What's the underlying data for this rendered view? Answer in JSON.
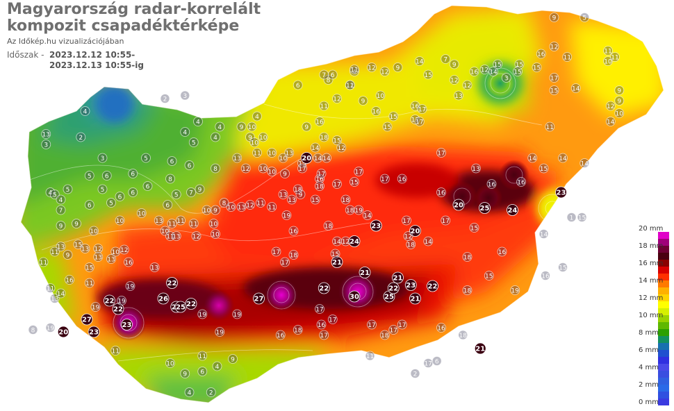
{
  "title_line1": "Magyarország radar-korrelált",
  "title_line2": "kompozit csapadéktérképe",
  "subtitle": "Az Időkép.hu vizualizációjában",
  "period_label": "Időszak -",
  "period_from": "2023.12.12 10:55-",
  "period_to": "2023.12.13 10:55-ig",
  "legend": {
    "labels": [
      "20 mm",
      "18 mm",
      "16 mm",
      "14 mm",
      "12 mm",
      "10 mm",
      "8 mm",
      "6 mm",
      "4 mm",
      "2 mm",
      "0 mm"
    ],
    "colors": [
      "#e000c8",
      "#a0007a",
      "#6e0034",
      "#4a0010",
      "#8a0000",
      "#d80000",
      "#ff3000",
      "#ff7a00",
      "#ffb000",
      "#ffd400",
      "#ffff00",
      "#d6f000",
      "#9ad200",
      "#5fb800",
      "#2ca000",
      "#139060",
      "#1870b0",
      "#2050d0",
      "#3030e0",
      "#4a4ae8",
      "#3a4ee0",
      "#3060e0",
      "#2a6ae8",
      "#3050e0",
      "#3a3ae0"
    ]
  },
  "stations": [
    {
      "lat": 48.5,
      "lon": 16.9,
      "v": "4"
    },
    {
      "lat": 48.62,
      "lon": 17.82,
      "v": "2"
    },
    {
      "lat": 48.65,
      "lon": 18.05,
      "v": "3"
    },
    {
      "lat": 48.4,
      "lon": 18.2,
      "v": "4"
    },
    {
      "lat": 48.35,
      "lon": 18.45,
      "v": "4"
    },
    {
      "lat": 48.45,
      "lon": 18.88,
      "v": "4"
    },
    {
      "lat": 48.75,
      "lon": 19.35,
      "v": "6"
    },
    {
      "lat": 48.88,
      "lon": 20.0,
      "v": "4"
    },
    {
      "lat": 48.98,
      "lon": 20.75,
      "v": "14"
    },
    {
      "lat": 49.4,
      "lon": 22.3,
      "v": "9"
    },
    {
      "lat": 49.4,
      "lon": 22.65,
      "v": "5"
    },
    {
      "lat": 48.28,
      "lon": 16.45,
      "v": "13"
    },
    {
      "lat": 48.25,
      "lon": 16.85,
      "v": "2"
    },
    {
      "lat": 48.18,
      "lon": 16.45,
      "v": "3"
    },
    {
      "lat": 48.3,
      "lon": 18.05,
      "v": "4"
    },
    {
      "lat": 48.2,
      "lon": 18.15,
      "v": "5"
    },
    {
      "lat": 48.25,
      "lon": 18.4,
      "v": "4"
    },
    {
      "lat": 48.05,
      "lon": 17.1,
      "v": "3"
    },
    {
      "lat": 48.05,
      "lon": 17.6,
      "v": "5"
    },
    {
      "lat": 48.02,
      "lon": 17.9,
      "v": "6"
    },
    {
      "lat": 47.98,
      "lon": 18.1,
      "v": "6"
    },
    {
      "lat": 47.95,
      "lon": 18.4,
      "v": "8"
    },
    {
      "lat": 48.05,
      "lon": 18.65,
      "v": "13"
    },
    {
      "lat": 48.1,
      "lon": 18.88,
      "v": "11"
    },
    {
      "lat": 47.95,
      "lon": 18.75,
      "v": "12"
    },
    {
      "lat": 47.92,
      "lon": 19.05,
      "v": "10"
    },
    {
      "lat": 47.9,
      "lon": 19.2,
      "v": "9"
    },
    {
      "lat": 47.95,
      "lon": 18.95,
      "v": "10"
    },
    {
      "lat": 48.05,
      "lon": 19.18,
      "v": "10"
    },
    {
      "lat": 48.0,
      "lon": 19.4,
      "v": "15"
    },
    {
      "lat": 47.88,
      "lon": 16.95,
      "v": "5"
    },
    {
      "lat": 47.88,
      "lon": 17.15,
      "v": "6"
    },
    {
      "lat": 47.9,
      "lon": 17.45,
      "v": "6"
    },
    {
      "lat": 47.85,
      "lon": 17.88,
      "v": "8"
    },
    {
      "lat": 47.78,
      "lon": 17.62,
      "v": "6"
    },
    {
      "lat": 47.75,
      "lon": 17.1,
      "v": "5"
    },
    {
      "lat": 47.72,
      "lon": 17.45,
      "v": "6"
    },
    {
      "lat": 47.72,
      "lon": 18.12,
      "v": "7"
    },
    {
      "lat": 47.75,
      "lon": 18.22,
      "v": "9"
    },
    {
      "lat": 47.7,
      "lon": 17.95,
      "v": "5"
    },
    {
      "lat": 47.68,
      "lon": 17.3,
      "v": "6"
    },
    {
      "lat": 47.62,
      "lon": 17.2,
      "v": "5"
    },
    {
      "lat": 47.6,
      "lon": 17.85,
      "v": "6"
    },
    {
      "lat": 47.75,
      "lon": 16.7,
      "v": "5"
    },
    {
      "lat": 47.72,
      "lon": 16.5,
      "v": "4"
    },
    {
      "lat": 47.7,
      "lon": 16.55,
      "v": "5"
    },
    {
      "lat": 47.65,
      "lon": 16.62,
      "v": "4"
    },
    {
      "lat": 47.55,
      "lon": 16.62,
      "v": "7"
    },
    {
      "lat": 47.6,
      "lon": 16.95,
      "v": "6"
    },
    {
      "lat": 47.52,
      "lon": 17.55,
      "v": "10"
    },
    {
      "lat": 47.55,
      "lon": 18.3,
      "v": "10"
    },
    {
      "lat": 47.55,
      "lon": 18.4,
      "v": "9"
    },
    {
      "lat": 47.58,
      "lon": 18.58,
      "v": "10"
    },
    {
      "lat": 47.62,
      "lon": 18.5,
      "v": "8"
    },
    {
      "lat": 47.58,
      "lon": 18.7,
      "v": "13"
    },
    {
      "lat": 47.6,
      "lon": 18.8,
      "v": "12"
    },
    {
      "lat": 47.62,
      "lon": 18.92,
      "v": "11"
    },
    {
      "lat": 47.58,
      "lon": 19.05,
      "v": "11"
    },
    {
      "lat": 47.65,
      "lon": 19.28,
      "v": "13"
    },
    {
      "lat": 47.7,
      "lon": 19.18,
      "v": "13"
    },
    {
      "lat": 47.7,
      "lon": 19.38,
      "v": "9"
    },
    {
      "lat": 47.4,
      "lon": 16.62,
      "v": "9"
    },
    {
      "lat": 47.42,
      "lon": 16.8,
      "v": "9"
    },
    {
      "lat": 47.35,
      "lon": 17.0,
      "v": "10"
    },
    {
      "lat": 47.45,
      "lon": 17.3,
      "v": "10"
    },
    {
      "lat": 47.45,
      "lon": 17.75,
      "v": "13"
    },
    {
      "lat": 47.42,
      "lon": 17.9,
      "v": "11"
    },
    {
      "lat": 47.35,
      "lon": 17.82,
      "v": "10"
    },
    {
      "lat": 47.45,
      "lon": 18.0,
      "v": "11"
    },
    {
      "lat": 47.3,
      "lon": 17.88,
      "v": "11"
    },
    {
      "lat": 47.3,
      "lon": 17.95,
      "v": "13"
    },
    {
      "lat": 47.42,
      "lon": 18.15,
      "v": "11"
    },
    {
      "lat": 47.42,
      "lon": 18.38,
      "v": "10"
    },
    {
      "lat": 47.3,
      "lon": 18.18,
      "v": "12"
    },
    {
      "lat": 47.32,
      "lon": 18.4,
      "v": "10"
    },
    {
      "lat": 47.2,
      "lon": 16.62,
      "v": "13"
    },
    {
      "lat": 47.22,
      "lon": 16.82,
      "v": "15"
    },
    {
      "lat": 47.18,
      "lon": 16.9,
      "v": "13"
    },
    {
      "lat": 47.15,
      "lon": 16.55,
      "v": "11"
    },
    {
      "lat": 47.12,
      "lon": 16.7,
      "v": "9"
    },
    {
      "lat": 47.18,
      "lon": 17.05,
      "v": "12"
    },
    {
      "lat": 47.1,
      "lon": 17.05,
      "v": "13"
    },
    {
      "lat": 47.15,
      "lon": 17.25,
      "v": "10"
    },
    {
      "lat": 47.17,
      "lon": 17.35,
      "v": "12"
    },
    {
      "lat": 47.05,
      "lon": 17.4,
      "v": "16"
    },
    {
      "lat": 47.0,
      "lon": 17.7,
      "v": "13"
    },
    {
      "lat": 47.08,
      "lon": 17.2,
      "v": "13"
    },
    {
      "lat": 47.0,
      "lon": 16.95,
      "v": "15"
    },
    {
      "lat": 47.05,
      "lon": 16.42,
      "v": "11"
    },
    {
      "lat": 46.88,
      "lon": 16.72,
      "v": "16"
    },
    {
      "lat": 46.85,
      "lon": 16.95,
      "v": "11"
    },
    {
      "lat": 46.8,
      "lon": 16.5,
      "v": "11"
    },
    {
      "lat": 46.7,
      "lon": 16.55,
      "v": "13"
    },
    {
      "lat": 46.75,
      "lon": 16.62,
      "v": "14"
    },
    {
      "lat": 46.4,
      "lon": 16.3,
      "v": "8"
    },
    {
      "lat": 46.42,
      "lon": 16.5,
      "v": "19"
    },
    {
      "lat": 46.38,
      "lon": 16.65,
      "v": "20"
    },
    {
      "lat": 46.5,
      "lon": 16.92,
      "v": "27"
    },
    {
      "lat": 46.38,
      "lon": 17.0,
      "v": "23"
    },
    {
      "lat": 46.45,
      "lon": 17.38,
      "v": "23"
    },
    {
      "lat": 46.6,
      "lon": 17.28,
      "v": "22"
    },
    {
      "lat": 46.62,
      "lon": 17.02,
      "v": "19"
    },
    {
      "lat": 46.68,
      "lon": 17.18,
      "v": "22"
    },
    {
      "lat": 46.68,
      "lon": 17.32,
      "v": "19"
    },
    {
      "lat": 46.82,
      "lon": 17.42,
      "v": "19"
    },
    {
      "lat": 46.85,
      "lon": 17.9,
      "v": "22"
    },
    {
      "lat": 46.7,
      "lon": 17.8,
      "v": "26"
    },
    {
      "lat": 46.62,
      "lon": 17.95,
      "v": "22"
    },
    {
      "lat": 46.65,
      "lon": 18.12,
      "v": "22"
    },
    {
      "lat": 46.62,
      "lon": 18.0,
      "v": "25"
    },
    {
      "lat": 46.55,
      "lon": 18.25,
      "v": "19"
    },
    {
      "lat": 46.7,
      "lon": 18.9,
      "v": "27"
    },
    {
      "lat": 46.8,
      "lon": 19.65,
      "v": "22"
    },
    {
      "lat": 46.72,
      "lon": 20.0,
      "v": "30"
    },
    {
      "lat": 46.72,
      "lon": 20.4,
      "v": "25"
    },
    {
      "lat": 46.8,
      "lon": 20.45,
      "v": "22"
    },
    {
      "lat": 46.83,
      "lon": 20.65,
      "v": "23"
    },
    {
      "lat": 46.82,
      "lon": 20.9,
      "v": "22"
    },
    {
      "lat": 46.7,
      "lon": 20.7,
      "v": "21"
    },
    {
      "lat": 46.6,
      "lon": 19.6,
      "v": "17"
    },
    {
      "lat": 46.95,
      "lon": 20.12,
      "v": "21"
    },
    {
      "lat": 46.9,
      "lon": 20.5,
      "v": "21"
    },
    {
      "lat": 47.05,
      "lon": 19.8,
      "v": "21"
    },
    {
      "lat": 47.13,
      "lon": 19.78,
      "v": "15"
    },
    {
      "lat": 47.05,
      "lon": 19.2,
      "v": "17"
    },
    {
      "lat": 46.5,
      "lon": 19.75,
      "v": "17"
    },
    {
      "lat": 46.45,
      "lon": 19.62,
      "v": "16"
    },
    {
      "lat": 46.4,
      "lon": 19.35,
      "v": "18"
    },
    {
      "lat": 46.35,
      "lon": 19.65,
      "v": "17"
    },
    {
      "lat": 46.35,
      "lon": 19.15,
      "v": "16"
    },
    {
      "lat": 46.38,
      "lon": 18.45,
      "v": "19"
    },
    {
      "lat": 46.55,
      "lon": 18.65,
      "v": "19"
    },
    {
      "lat": 46.45,
      "lon": 20.2,
      "v": "17"
    },
    {
      "lat": 46.45,
      "lon": 20.55,
      "v": "17"
    },
    {
      "lat": 46.42,
      "lon": 21.0,
      "v": "16"
    },
    {
      "lat": 46.35,
      "lon": 21.25,
      "v": "18"
    },
    {
      "lat": 46.4,
      "lon": 20.45,
      "v": "17"
    },
    {
      "lat": 46.35,
      "lon": 20.35,
      "v": "18"
    },
    {
      "lat": 46.22,
      "lon": 21.45,
      "v": "21"
    },
    {
      "lat": 46.15,
      "lon": 18.25,
      "v": "11"
    },
    {
      "lat": 46.2,
      "lon": 17.25,
      "v": "11"
    },
    {
      "lat": 46.08,
      "lon": 17.88,
      "v": "10"
    },
    {
      "lat": 46.0,
      "lon": 18.25,
      "v": "6"
    },
    {
      "lat": 46.05,
      "lon": 18.42,
      "v": "4"
    },
    {
      "lat": 46.12,
      "lon": 18.6,
      "v": "9"
    },
    {
      "lat": 45.98,
      "lon": 18.05,
      "v": "9"
    },
    {
      "lat": 45.8,
      "lon": 18.1,
      "v": "4"
    },
    {
      "lat": 45.8,
      "lon": 18.35,
      "v": "2"
    },
    {
      "lat": 45.98,
      "lon": 20.7,
      "v": "2"
    },
    {
      "lat": 46.08,
      "lon": 20.85,
      "v": "17"
    },
    {
      "lat": 46.1,
      "lon": 20.95,
      "v": "6"
    },
    {
      "lat": 46.15,
      "lon": 20.18,
      "v": "11"
    },
    {
      "lat": 47.1,
      "lon": 21.3,
      "v": "18"
    },
    {
      "lat": 47.15,
      "lon": 21.7,
      "v": "16"
    },
    {
      "lat": 46.92,
      "lon": 21.55,
      "v": "15"
    },
    {
      "lat": 46.78,
      "lon": 21.3,
      "v": "18"
    },
    {
      "lat": 46.78,
      "lon": 21.85,
      "v": "19"
    },
    {
      "lat": 46.92,
      "lon": 22.2,
      "v": "16"
    },
    {
      "lat": 47.0,
      "lon": 22.4,
      "v": "15"
    },
    {
      "lat": 47.45,
      "lon": 21.05,
      "v": "17"
    },
    {
      "lat": 47.38,
      "lon": 21.38,
      "v": "15"
    },
    {
      "lat": 47.6,
      "lon": 21.2,
      "v": "20"
    },
    {
      "lat": 47.57,
      "lon": 21.5,
      "v": "25"
    },
    {
      "lat": 47.55,
      "lon": 21.82,
      "v": "24"
    },
    {
      "lat": 47.72,
      "lon": 22.38,
      "v": "23"
    },
    {
      "lat": 47.48,
      "lon": 22.5,
      "v": "1"
    },
    {
      "lat": 47.48,
      "lon": 22.62,
      "v": "15"
    },
    {
      "lat": 47.32,
      "lon": 22.18,
      "v": "14"
    },
    {
      "lat": 47.8,
      "lon": 21.58,
      "v": "16"
    },
    {
      "lat": 47.82,
      "lon": 21.92,
      "v": "16"
    },
    {
      "lat": 47.95,
      "lon": 21.4,
      "v": "13"
    },
    {
      "lat": 47.95,
      "lon": 22.18,
      "v": "15"
    },
    {
      "lat": 48.05,
      "lon": 22.05,
      "v": "14"
    },
    {
      "lat": 48.05,
      "lon": 22.4,
      "v": "14"
    },
    {
      "lat": 48.0,
      "lon": 22.65,
      "v": "14"
    },
    {
      "lat": 48.35,
      "lon": 22.25,
      "v": "11"
    },
    {
      "lat": 48.4,
      "lon": 22.95,
      "v": "14"
    },
    {
      "lat": 48.48,
      "lon": 23.05,
      "v": "10"
    },
    {
      "lat": 48.6,
      "lon": 23.05,
      "v": "9"
    },
    {
      "lat": 48.7,
      "lon": 23.05,
      "v": "9"
    },
    {
      "lat": 48.55,
      "lon": 22.95,
      "v": "12"
    },
    {
      "lat": 48.7,
      "lon": 22.3,
      "v": "15"
    },
    {
      "lat": 48.72,
      "lon": 22.55,
      "v": "14"
    },
    {
      "lat": 48.82,
      "lon": 22.3,
      "v": "17"
    },
    {
      "lat": 48.92,
      "lon": 22.1,
      "v": "15"
    },
    {
      "lat": 48.95,
      "lon": 21.9,
      "v": "15"
    },
    {
      "lat": 48.95,
      "lon": 21.65,
      "v": "15"
    },
    {
      "lat": 49.05,
      "lon": 22.15,
      "v": "16"
    },
    {
      "lat": 49.12,
      "lon": 22.3,
      "v": "12"
    },
    {
      "lat": 49.02,
      "lon": 22.45,
      "v": "11"
    },
    {
      "lat": 49.08,
      "lon": 22.92,
      "v": "11"
    },
    {
      "lat": 48.98,
      "lon": 22.92,
      "v": "10"
    },
    {
      "lat": 49.02,
      "lon": 23.0,
      "v": "11"
    },
    {
      "lat": 48.82,
      "lon": 21.75,
      "v": "3"
    },
    {
      "lat": 48.88,
      "lon": 21.6,
      "v": "14"
    },
    {
      "lat": 48.88,
      "lon": 21.88,
      "v": "15"
    },
    {
      "lat": 49.0,
      "lon": 21.05,
      "v": "7"
    },
    {
      "lat": 48.95,
      "lon": 21.15,
      "v": "9"
    },
    {
      "lat": 48.9,
      "lon": 21.5,
      "v": "12"
    },
    {
      "lat": 48.88,
      "lon": 21.38,
      "v": "16"
    },
    {
      "lat": 48.75,
      "lon": 21.3,
      "v": "12"
    },
    {
      "lat": 48.8,
      "lon": 21.15,
      "v": "12"
    },
    {
      "lat": 48.65,
      "lon": 21.2,
      "v": "13"
    },
    {
      "lat": 48.85,
      "lon": 20.85,
      "v": "15"
    },
    {
      "lat": 48.92,
      "lon": 20.5,
      "v": "9"
    },
    {
      "lat": 48.92,
      "lon": 20.2,
      "v": "12"
    },
    {
      "lat": 48.88,
      "lon": 20.35,
      "v": "12"
    },
    {
      "lat": 48.9,
      "lon": 20.0,
      "v": "11"
    },
    {
      "lat": 48.8,
      "lon": 19.7,
      "v": "8"
    },
    {
      "lat": 48.85,
      "lon": 19.75,
      "v": "6"
    },
    {
      "lat": 48.75,
      "lon": 19.95,
      "v": "12"
    },
    {
      "lat": 48.85,
      "lon": 19.65,
      "v": "7"
    },
    {
      "lat": 48.75,
      "lon": 19.95,
      "v": "11"
    },
    {
      "lat": 48.65,
      "lon": 20.3,
      "v": "10"
    },
    {
      "lat": 48.55,
      "lon": 20.7,
      "v": "16"
    },
    {
      "lat": 48.52,
      "lon": 20.78,
      "v": "17"
    },
    {
      "lat": 48.42,
      "lon": 20.7,
      "v": "17"
    },
    {
      "lat": 48.4,
      "lon": 20.75,
      "v": "17"
    },
    {
      "lat": 48.45,
      "lon": 20.45,
      "v": "15"
    },
    {
      "lat": 48.35,
      "lon": 20.38,
      "v": "15"
    },
    {
      "lat": 48.5,
      "lon": 20.25,
      "v": "16"
    },
    {
      "lat": 48.6,
      "lon": 20.1,
      "v": "9"
    },
    {
      "lat": 48.62,
      "lon": 19.8,
      "v": "12"
    },
    {
      "lat": 48.55,
      "lon": 19.65,
      "v": "11"
    },
    {
      "lat": 48.4,
      "lon": 19.6,
      "v": "16"
    },
    {
      "lat": 48.35,
      "lon": 19.45,
      "v": "9"
    },
    {
      "lat": 48.25,
      "lon": 19.65,
      "v": "18"
    },
    {
      "lat": 48.15,
      "lon": 19.85,
      "v": "12"
    },
    {
      "lat": 48.22,
      "lon": 19.8,
      "v": "15"
    },
    {
      "lat": 48.15,
      "lon": 19.55,
      "v": "14"
    },
    {
      "lat": 48.05,
      "lon": 19.58,
      "v": "14"
    },
    {
      "lat": 48.05,
      "lon": 19.45,
      "v": "20"
    },
    {
      "lat": 47.95,
      "lon": 19.4,
      "v": "17"
    },
    {
      "lat": 48.1,
      "lon": 19.25,
      "v": "13"
    },
    {
      "lat": 48.25,
      "lon": 18.95,
      "v": "10"
    },
    {
      "lat": 48.35,
      "lon": 18.82,
      "v": "10"
    },
    {
      "lat": 48.35,
      "lon": 18.7,
      "v": "9"
    },
    {
      "lat": 48.25,
      "lon": 18.8,
      "v": "9"
    },
    {
      "lat": 48.2,
      "lon": 18.85,
      "v": "10"
    },
    {
      "lat": 48.1,
      "lon": 19.05,
      "v": "10"
    },
    {
      "lat": 48.05,
      "lon": 19.68,
      "v": "14"
    },
    {
      "lat": 47.85,
      "lon": 19.6,
      "v": "16"
    },
    {
      "lat": 47.78,
      "lon": 19.6,
      "v": "18"
    },
    {
      "lat": 47.9,
      "lon": 19.62,
      "v": "17"
    },
    {
      "lat": 47.92,
      "lon": 20.05,
      "v": "17"
    },
    {
      "lat": 47.85,
      "lon": 20.35,
      "v": "17"
    },
    {
      "lat": 47.82,
      "lon": 20.0,
      "v": "15"
    },
    {
      "lat": 47.8,
      "lon": 19.8,
      "v": "17"
    },
    {
      "lat": 47.65,
      "lon": 19.55,
      "v": "15"
    },
    {
      "lat": 47.65,
      "lon": 19.9,
      "v": "18"
    },
    {
      "lat": 47.55,
      "lon": 20.05,
      "v": "19"
    },
    {
      "lat": 47.55,
      "lon": 19.95,
      "v": "18"
    },
    {
      "lat": 47.5,
      "lon": 20.15,
      "v": "14"
    },
    {
      "lat": 47.4,
      "lon": 19.7,
      "v": "18"
    },
    {
      "lat": 47.35,
      "lon": 19.3,
      "v": "16"
    },
    {
      "lat": 47.4,
      "lon": 20.25,
      "v": "21"
    },
    {
      "lat": 47.45,
      "lon": 20.6,
      "v": "17"
    },
    {
      "lat": 47.35,
      "lon": 20.7,
      "v": "20"
    },
    {
      "lat": 47.3,
      "lon": 20.62,
      "v": "12"
    },
    {
      "lat": 47.22,
      "lon": 20.65,
      "v": "18"
    },
    {
      "lat": 47.25,
      "lon": 20.85,
      "v": "14"
    },
    {
      "lat": 47.4,
      "lon": 20.25,
      "v": "23"
    },
    {
      "lat": 47.25,
      "lon": 19.9,
      "v": "12"
    },
    {
      "lat": 47.25,
      "lon": 20.0,
      "v": "24"
    },
    {
      "lat": 47.25,
      "lon": 19.8,
      "v": "14"
    },
    {
      "lat": 47.12,
      "lon": 19.3,
      "v": "18"
    },
    {
      "lat": 47.15,
      "lon": 19.1,
      "v": "17"
    },
    {
      "lat": 47.5,
      "lon": 19.22,
      "v": "19"
    },
    {
      "lat": 47.75,
      "lon": 19.35,
      "v": "18"
    },
    {
      "lat": 47.85,
      "lon": 20.55,
      "v": "16"
    },
    {
      "lat": 47.72,
      "lon": 21.0,
      "v": "16"
    },
    {
      "lat": 48.1,
      "lon": 21.0,
      "v": "17"
    }
  ]
}
